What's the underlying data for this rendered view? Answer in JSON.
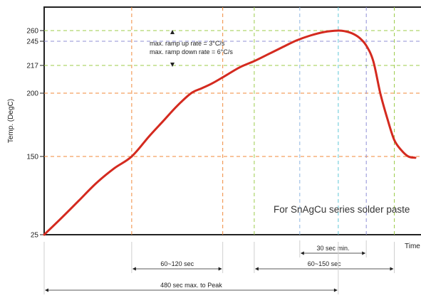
{
  "chart_data": {
    "type": "line",
    "title": "",
    "xlabel": "Time",
    "ylabel": "Temp. (DegC)",
    "y_ticks": [
      25,
      150,
      200,
      217,
      245,
      260
    ],
    "ylim": [
      25,
      260
    ],
    "x_units": "sec",
    "xlim": [
      0,
      530
    ],
    "series": [
      {
        "color": "#d42a1f",
        "x": [
          0,
          25,
          50,
          75,
          100,
          125,
          150,
          170,
          190,
          210,
          225,
          240,
          260,
          280,
          300,
          320,
          340,
          360,
          380,
          400,
          420,
          430,
          440,
          450,
          460,
          470,
          480,
          490,
          500,
          510,
          520,
          530
        ],
        "y": [
          25,
          52,
          80,
          108,
          131,
          150,
          166,
          178,
          190,
          200,
          203,
          206,
          211,
          216,
          222,
          230,
          238,
          246,
          253,
          258,
          260,
          259,
          256,
          250,
          240,
          222,
          200,
          180,
          163,
          155,
          150,
          148
        ]
      }
    ],
    "guides": [
      {
        "axis": "y",
        "value": 260,
        "color": "#9ccc4a"
      },
      {
        "axis": "y",
        "value": 245,
        "color": "#8f8fd6"
      },
      {
        "axis": "y",
        "value": 217,
        "color": "#9ccc4a"
      },
      {
        "axis": "y",
        "value": 200,
        "color": "#f0883a"
      },
      {
        "axis": "y",
        "value": 150,
        "color": "#f0883a"
      },
      {
        "axis": "x",
        "value": 125,
        "color": "#f0883a"
      },
      {
        "axis": "x",
        "value": 255,
        "color": "#f0883a"
      },
      {
        "axis": "x",
        "value": 300,
        "color": "#9ccc4a"
      },
      {
        "axis": "x",
        "value": 365,
        "color": "#8fb7e0"
      },
      {
        "axis": "x",
        "value": 420,
        "color": "#5fc7d8"
      },
      {
        "axis": "x",
        "value": 460,
        "color": "#8f8fd6"
      },
      {
        "axis": "x",
        "value": 500,
        "color": "#9ccc4a"
      }
    ],
    "annotations": {
      "ramp_up": "max. ramp up rate = 3°C/s",
      "ramp_down": "max. ramp down rate = 6°C/s",
      "paste": "For SnAgCu series solder paste"
    },
    "dimensions": [
      {
        "label": "30 sec min.",
        "from": 365,
        "to": 460
      },
      {
        "label": "60~120 sec",
        "from": 125,
        "to": 255
      },
      {
        "label": "60~150 sec",
        "from": 300,
        "to": 500
      },
      {
        "label": "480 sec max. to Peak",
        "from": 0,
        "to": 420
      }
    ]
  }
}
